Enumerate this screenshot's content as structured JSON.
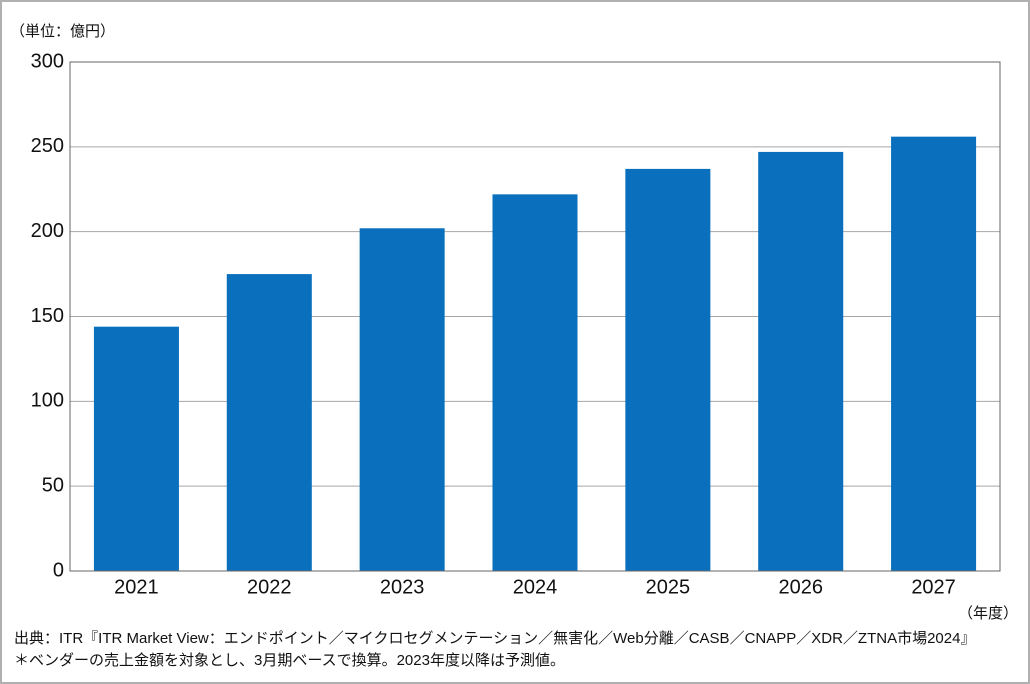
{
  "chart_data": {
    "type": "bar",
    "unit_label": "（単位：億円）",
    "x_label": "（年度）",
    "categories": [
      "2021",
      "2022",
      "2023",
      "2024",
      "2025",
      "2026",
      "2027"
    ],
    "values": [
      144,
      175,
      202,
      222,
      237,
      247,
      256
    ],
    "color": "#0a70be",
    "ylim": [
      0,
      300
    ],
    "yticks": [
      0,
      50,
      100,
      150,
      200,
      250,
      300
    ],
    "grid": true,
    "notes": [
      "出典：ITR『ITR Market View：エンドポイント／マイクロセグメンテーション／無害化／Web分離／CASB／CNAPP／XDR／ZTNA市場2024』",
      "＊ベンダーの売上金額を対象とし、3月期ベースで換算。2023年度以降は予測値。"
    ]
  }
}
